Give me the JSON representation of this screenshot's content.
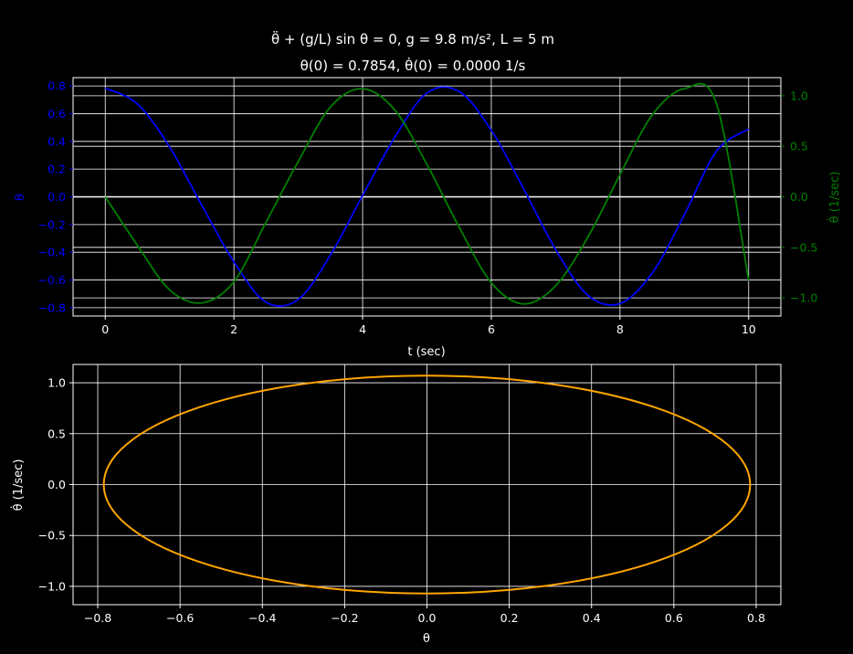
{
  "title": {
    "line1": "θ̈ + (g/L) sin θ = 0,     g = 9.8 m/s²,     L = 5 m",
    "line2": "θ(0) = 0.7854,     θ̇(0) = 0.0000 1/s"
  },
  "colors": {
    "background": "#000000",
    "grid": "#ffffff",
    "theta": "#0000ff",
    "theta_dot": "#008000",
    "phase": "#ffa500",
    "text": "#ffffff"
  },
  "params": {
    "g": 9.8,
    "L": 5,
    "theta0": 0.7854,
    "theta_dot0": 0.0
  },
  "chart_data": [
    {
      "type": "line",
      "xlabel": "t (sec)",
      "ylabel": "θ",
      "y2label": "θ̇ (1/sec)",
      "xlim": [
        -0.5,
        10.5
      ],
      "ylim": [
        -0.86,
        0.86
      ],
      "y2lim": [
        -1.18,
        1.18
      ],
      "xticks": [
        0,
        2,
        4,
        6,
        8,
        10
      ],
      "yticks": [
        -0.8,
        -0.6,
        -0.4,
        -0.2,
        0.0,
        0.2,
        0.4,
        0.6,
        0.8
      ],
      "y2ticks": [
        -1.0,
        -0.5,
        0.0,
        0.5,
        1.0
      ],
      "xtick_labels": [
        "0",
        "2",
        "4",
        "6",
        "8",
        "10"
      ],
      "ytick_labels": [
        "−0.8",
        "−0.6",
        "−0.4",
        "−0.2",
        "0.0",
        "0.2",
        "0.4",
        "0.6",
        "0.8"
      ],
      "y2tick_labels": [
        "−1.0",
        "−0.5",
        "0.0",
        "0.5",
        "1.0"
      ],
      "grid": true,
      "series": [
        {
          "axis": "left",
          "x": [
            0,
            0.5,
            1,
            1.5,
            2,
            2.5,
            3,
            3.5,
            4,
            4.5,
            5,
            5.5,
            6,
            6.5,
            7,
            7.5,
            8,
            8.5,
            9,
            9.5,
            10
          ],
          "values": [
            0.785,
            0.67,
            0.36,
            -0.06,
            -0.47,
            -0.76,
            -0.74,
            -0.42,
            0.01,
            0.43,
            0.75,
            0.76,
            0.48,
            0.06,
            -0.38,
            -0.71,
            -0.77,
            -0.55,
            -0.13,
            0.33,
            0.49
          ]
        },
        {
          "axis": "right",
          "x": [
            0,
            0.5,
            1,
            1.5,
            2,
            2.5,
            3,
            3.5,
            4,
            4.5,
            5,
            5.5,
            6,
            6.5,
            7,
            7.5,
            8,
            8.5,
            9,
            9.5,
            10
          ],
          "values": [
            0.0,
            -0.48,
            -0.92,
            -1.05,
            -0.84,
            -0.25,
            0.35,
            0.89,
            1.07,
            0.86,
            0.32,
            -0.3,
            -0.85,
            -1.06,
            -0.88,
            -0.4,
            0.22,
            0.81,
            1.07,
            0.92,
            -0.83
          ]
        }
      ]
    },
    {
      "type": "line",
      "xlabel": "θ",
      "ylabel": "θ̇ (1/sec)",
      "xlim": [
        -0.86,
        0.86
      ],
      "ylim": [
        -1.18,
        1.18
      ],
      "xticks": [
        -0.8,
        -0.6,
        -0.4,
        -0.2,
        0.0,
        0.2,
        0.4,
        0.6,
        0.8
      ],
      "yticks": [
        -1.0,
        -0.5,
        0.0,
        0.5,
        1.0
      ],
      "xtick_labels": [
        "−0.8",
        "−0.6",
        "−0.4",
        "−0.2",
        "0.0",
        "0.2",
        "0.4",
        "0.6",
        "0.8"
      ],
      "ytick_labels": [
        "−1.0",
        "−0.5",
        "0.0",
        "0.5",
        "1.0"
      ],
      "grid": true,
      "series": [
        {
          "theta_amplitude": 0.7854,
          "theta_dot_amplitude": 1.07
        }
      ]
    }
  ]
}
